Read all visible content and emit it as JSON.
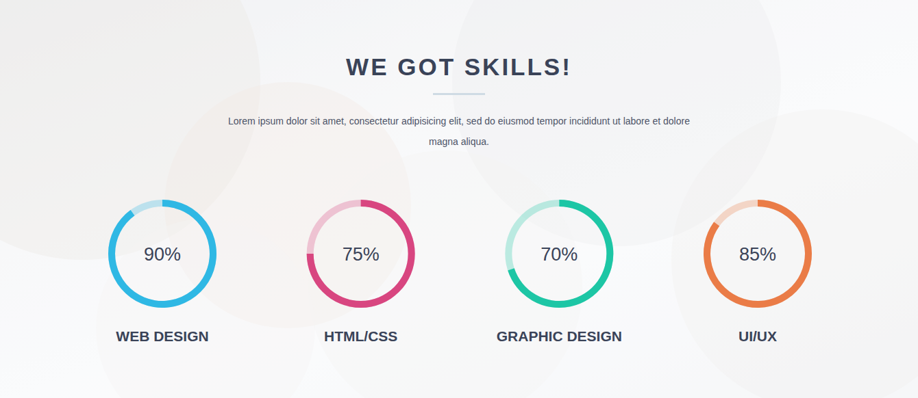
{
  "chart_data": {
    "type": "progress_ring",
    "title": "WE GOT SKILLS!",
    "subtitle": "Lorem ipsum dolor sit amet, consectetur adipisicing elit, sed do eiusmod tempor incididunt ut labore et dolore magna aliqua.",
    "categories": [
      "WEB DESIGN",
      "HTML/CSS",
      "GRAPHIC DESIGN",
      "UI/UX"
    ],
    "values": [
      90,
      75,
      70,
      85
    ],
    "value_labels": [
      "90%",
      "75%",
      "70%",
      "85%"
    ],
    "colors": [
      "#2fb8e4",
      "#d84680",
      "#1dc6a5",
      "#ea7c47"
    ],
    "ylim": [
      0,
      100
    ],
    "data_labels": true
  }
}
